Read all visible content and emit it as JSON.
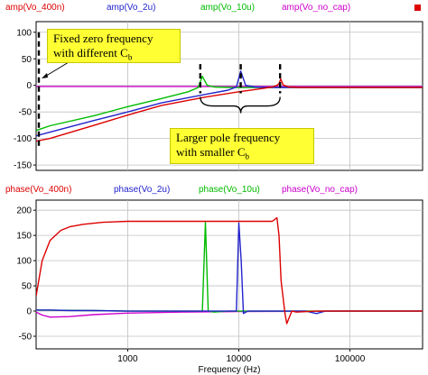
{
  "chart_data": [
    {
      "type": "line",
      "title": "",
      "xlabel": "",
      "ylabel": "",
      "xscale": "log",
      "xlim": [
        150,
        450000
      ],
      "ylim": [
        -160,
        120
      ],
      "ytick_labels": [
        "100",
        "50",
        "0",
        "-50",
        "-100",
        "-150"
      ],
      "grid": true,
      "legend": "top",
      "series": [
        {
          "name": "amp(Vo_400n)",
          "color": "#dd0000",
          "x": [
            150,
            200,
            500,
            1000,
            2000,
            5000,
            10000,
            15000,
            20000,
            22000,
            23000,
            23800,
            25000,
            28000,
            35000,
            60000,
            100000,
            200000,
            450000
          ],
          "y": [
            -105,
            -100,
            -75,
            -56,
            -38,
            -22,
            -12,
            -7,
            -3,
            0,
            3,
            12,
            1,
            -3,
            -4,
            -4,
            -4,
            -4,
            -4
          ]
        },
        {
          "name": "amp(Vo_2u)",
          "color": "#2222cc",
          "x": [
            150,
            200,
            500,
            1000,
            2000,
            5000,
            8000,
            9500,
            10400,
            11500,
            14000,
            20000,
            50000,
            100000,
            450000
          ],
          "y": [
            -95,
            -88,
            -66,
            -50,
            -33,
            -17,
            -9,
            -3,
            27,
            0,
            -3,
            -4,
            -4,
            -4,
            -4
          ]
        },
        {
          "name": "amp(Vo_10u)",
          "color": "#00bb00",
          "x": [
            150,
            200,
            500,
            1000,
            2000,
            3500,
            4300,
            4700,
            5200,
            6000,
            9000,
            20000,
            100000,
            450000
          ],
          "y": [
            -85,
            -76,
            -57,
            -40,
            -25,
            -12,
            -4,
            17,
            0,
            -3,
            -4,
            -4,
            -4,
            -4
          ]
        },
        {
          "name": "amp(Vo_no_cap)",
          "color": "#cc00cc",
          "x": [
            150,
            1000,
            10000,
            100000,
            450000
          ],
          "y": [
            -2,
            -2,
            -2,
            -2,
            -2
          ]
        }
      ]
    },
    {
      "type": "line",
      "title": "",
      "xlabel": "Frequency (Hz)",
      "ylabel": "",
      "xscale": "log",
      "xlim": [
        150,
        450000
      ],
      "ylim": [
        -75,
        220
      ],
      "xtick_labels": [
        "1000",
        "10000",
        "100000"
      ],
      "ytick_labels": [
        "200",
        "150",
        "100",
        "50",
        "0",
        "-50"
      ],
      "grid": true,
      "legend": "top",
      "series": [
        {
          "name": "phase(Vo_400n)",
          "color": "#dd0000",
          "x": [
            150,
            170,
            200,
            250,
            300,
            400,
            600,
            1000,
            3000,
            10000,
            20000,
            22000,
            23000,
            24000,
            26000,
            27000,
            30000,
            33000,
            50000,
            450000
          ],
          "y": [
            30,
            100,
            140,
            160,
            167,
            172,
            176,
            178,
            178,
            178,
            178,
            185,
            150,
            60,
            -5,
            -25,
            0,
            -2,
            0,
            0
          ]
        },
        {
          "name": "phase(Vo_2u)",
          "color": "#2222cc",
          "x": [
            150,
            200,
            300,
            500,
            1000,
            5000,
            9500,
            10000,
            10500,
            11000,
            12000,
            14000,
            20000,
            40000,
            50000,
            60000,
            450000
          ],
          "y": [
            2,
            2,
            1,
            1,
            0,
            0,
            0,
            175,
            100,
            -5,
            0,
            0,
            0,
            0,
            -5,
            0,
            0
          ]
        },
        {
          "name": "phase(Vo_10u)",
          "color": "#00bb00",
          "x": [
            150,
            500,
            1000,
            4000,
            4700,
            5000,
            5300,
            6000,
            8000,
            450000
          ],
          "y": [
            2,
            1,
            0,
            0,
            0,
            176,
            0,
            -2,
            0,
            0
          ]
        },
        {
          "name": "phase(Vo_no_cap)",
          "color": "#cc00cc",
          "x": [
            150,
            170,
            200,
            300,
            500,
            1000,
            3000,
            10000,
            100000,
            450000
          ],
          "y": [
            -2,
            -8,
            -12,
            -11,
            -7,
            -4,
            -2,
            -1,
            0,
            0
          ]
        }
      ]
    }
  ],
  "annotations": {
    "zero_text_1": "Fixed zero frequency",
    "zero_text_2": "with different C",
    "zero_sub": "b",
    "pole_text_1": "Larger pole frequency",
    "pole_text_2": "with smaller C",
    "pole_sub": "b"
  },
  "colors": {
    "grid": "#c0c0c0",
    "frame": "#000000",
    "annotation_box": "#ffff33"
  }
}
